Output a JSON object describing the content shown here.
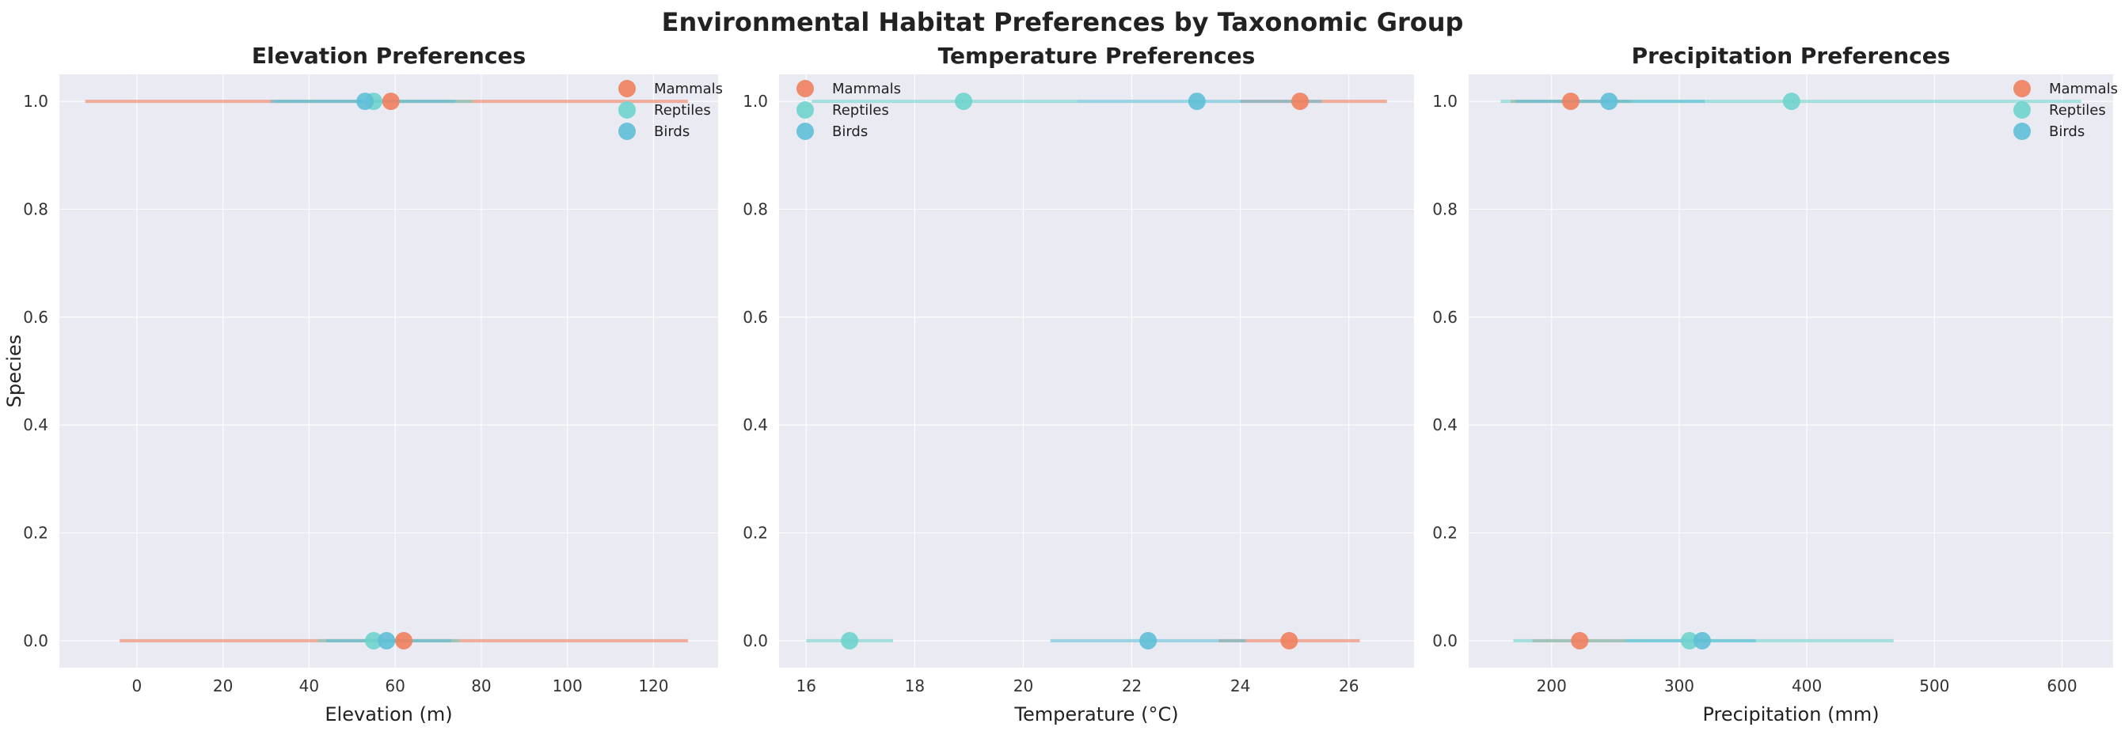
{
  "figure": {
    "title": "Environmental Habitat Preferences by Taxonomic Group"
  },
  "legend_labels": [
    "Mammals",
    "Reptiles",
    "Birds"
  ],
  "colors": {
    "Mammals": "#f07f5e",
    "Reptiles": "#6fd3cc",
    "Birds": "#5fbfd6",
    "background": "#eaeaf2",
    "grid": "#ffffff"
  },
  "chart_data": [
    {
      "type": "scatter",
      "title": "Elevation Preferences",
      "xlabel": "Elevation (m)",
      "ylabel": "Species",
      "xlim": [
        -18,
        135
      ],
      "ylim": [
        -0.05,
        1.05
      ],
      "xticks": [
        0,
        20,
        40,
        60,
        80,
        100,
        120
      ],
      "yticks": [
        0.0,
        0.2,
        0.4,
        0.6,
        0.8,
        1.0
      ],
      "legend_position": "top-right",
      "grid": true,
      "series": [
        {
          "name": "Mammals",
          "points": [
            {
              "y": 1.0,
              "x": 59,
              "range": [
                -12,
                128
              ]
            },
            {
              "y": 0.0,
              "x": 62,
              "range": [
                -4,
                128
              ]
            }
          ]
        },
        {
          "name": "Reptiles",
          "points": [
            {
              "y": 1.0,
              "x": 55,
              "range": [
                32,
                78
              ]
            },
            {
              "y": 0.0,
              "x": 55,
              "range": [
                42,
                75
              ]
            }
          ]
        },
        {
          "name": "Birds",
          "points": [
            {
              "y": 1.0,
              "x": 53,
              "range": [
                31,
                74
              ]
            },
            {
              "y": 0.0,
              "x": 58,
              "range": [
                44,
                73
              ]
            }
          ]
        }
      ]
    },
    {
      "type": "scatter",
      "title": "Temperature Preferences",
      "xlabel": "Temperature (°C)",
      "ylabel": "",
      "xlim": [
        15.5,
        27.2
      ],
      "ylim": [
        -0.05,
        1.05
      ],
      "xticks": [
        16,
        18,
        20,
        22,
        24,
        26
      ],
      "yticks": [
        0.0,
        0.2,
        0.4,
        0.6,
        0.8,
        1.0
      ],
      "legend_position": "top-left",
      "grid": true,
      "series": [
        {
          "name": "Mammals",
          "points": [
            {
              "y": 1.0,
              "x": 25.1,
              "range": [
                24.0,
                26.7
              ]
            },
            {
              "y": 0.0,
              "x": 24.9,
              "range": [
                23.6,
                26.2
              ]
            }
          ]
        },
        {
          "name": "Reptiles",
          "points": [
            {
              "y": 1.0,
              "x": 18.9,
              "range": [
                16.1,
                21.0
              ]
            },
            {
              "y": 0.0,
              "x": 16.8,
              "range": [
                16.0,
                17.6
              ]
            }
          ]
        },
        {
          "name": "Birds",
          "points": [
            {
              "y": 1.0,
              "x": 23.2,
              "range": [
                21.0,
                25.5
              ]
            },
            {
              "y": 0.0,
              "x": 22.3,
              "range": [
                20.5,
                24.1
              ]
            }
          ]
        }
      ]
    },
    {
      "type": "scatter",
      "title": "Precipitation Preferences",
      "xlabel": "Precipitation (mm)",
      "ylabel": "",
      "xlim": [
        135,
        640
      ],
      "ylim": [
        -0.05,
        1.05
      ],
      "xticks": [
        200,
        300,
        400,
        500,
        600
      ],
      "yticks": [
        0.0,
        0.2,
        0.4,
        0.6,
        0.8,
        1.0
      ],
      "legend_position": "top-right",
      "grid": true,
      "series": [
        {
          "name": "Mammals",
          "points": [
            {
              "y": 1.0,
              "x": 215,
              "range": [
                168,
                262
              ]
            },
            {
              "y": 0.0,
              "x": 222,
              "range": [
                185,
                258
              ]
            }
          ]
        },
        {
          "name": "Reptiles",
          "points": [
            {
              "y": 1.0,
              "x": 388,
              "range": [
                160,
                615
              ]
            },
            {
              "y": 0.0,
              "x": 308,
              "range": [
                170,
                468
              ]
            }
          ]
        },
        {
          "name": "Birds",
          "points": [
            {
              "y": 1.0,
              "x": 245,
              "range": [
                172,
                320
              ]
            },
            {
              "y": 0.0,
              "x": 318,
              "range": [
                258,
                360
              ]
            }
          ]
        }
      ]
    }
  ]
}
